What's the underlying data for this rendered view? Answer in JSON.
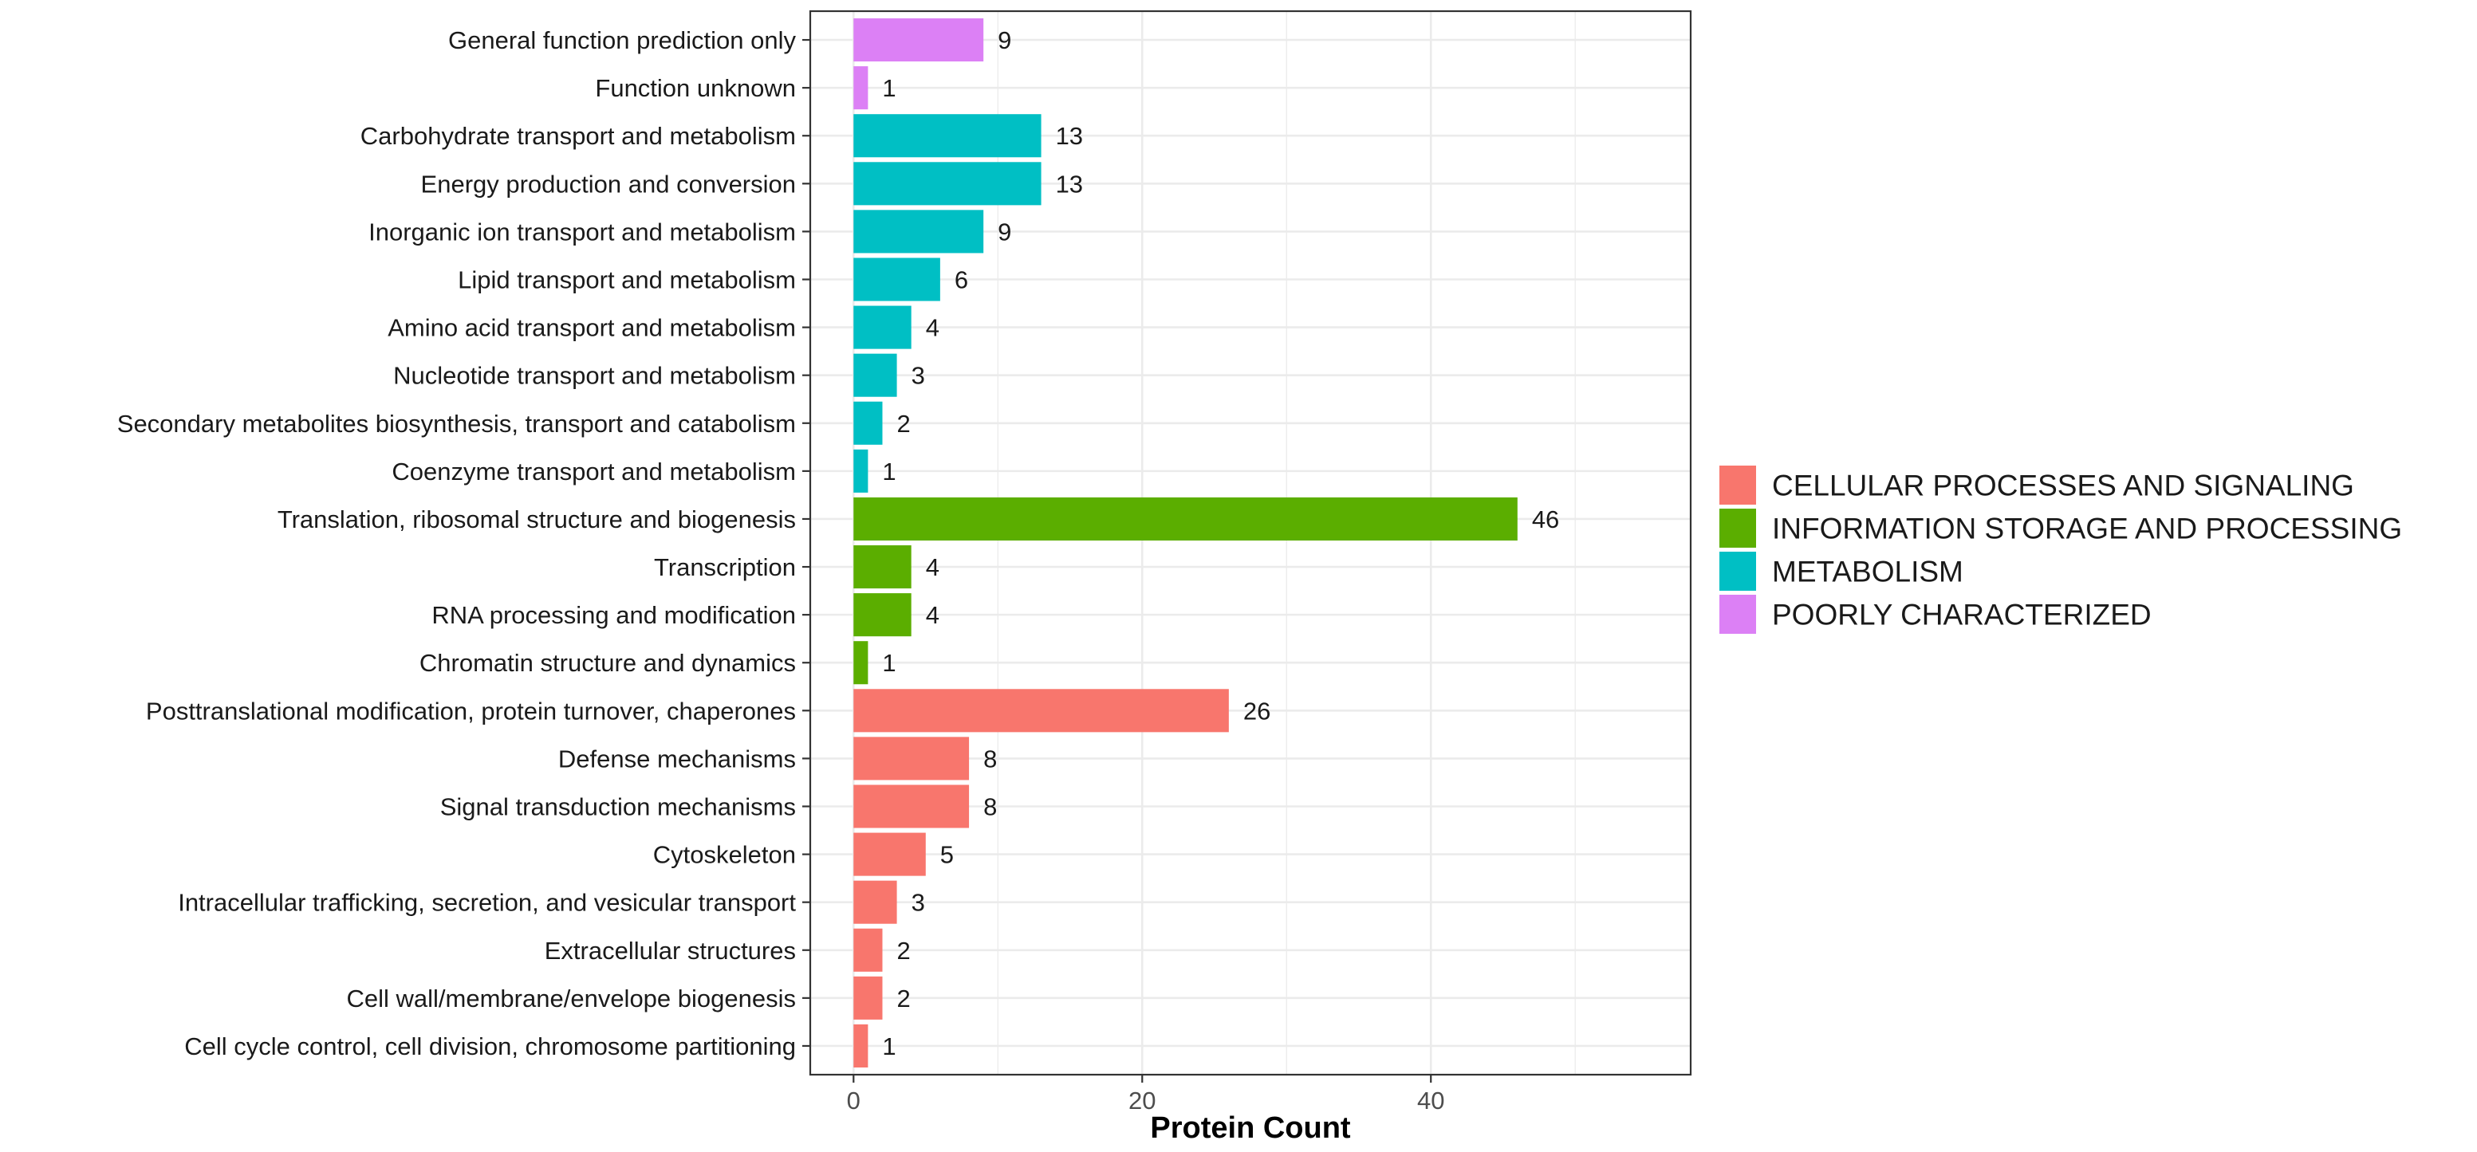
{
  "chart_data": {
    "type": "bar",
    "orientation": "horizontal",
    "title": "",
    "xlabel": "Protein Count",
    "ylabel": "",
    "xlim": [
      -3,
      58
    ],
    "xticks": [
      0,
      20,
      40
    ],
    "grid": true,
    "legend_position": "right",
    "groups": [
      {
        "name": "CELLULAR PROCESSES AND SIGNALING",
        "color": "#F8766D"
      },
      {
        "name": "INFORMATION STORAGE AND PROCESSING",
        "color": "#5BAE00"
      },
      {
        "name": "METABOLISM",
        "color": "#00BFC4"
      },
      {
        "name": "POORLY CHARACTERIZED",
        "color": "#DC80F5"
      }
    ],
    "bars": [
      {
        "category": "General function prediction only",
        "value": 9,
        "group": 3
      },
      {
        "category": "Function unknown",
        "value": 1,
        "group": 3
      },
      {
        "category": "Carbohydrate transport and metabolism",
        "value": 13,
        "group": 2
      },
      {
        "category": "Energy production and conversion",
        "value": 13,
        "group": 2
      },
      {
        "category": "Inorganic ion transport and metabolism",
        "value": 9,
        "group": 2
      },
      {
        "category": "Lipid transport and metabolism",
        "value": 6,
        "group": 2
      },
      {
        "category": "Amino acid transport and metabolism",
        "value": 4,
        "group": 2
      },
      {
        "category": "Nucleotide transport and metabolism",
        "value": 3,
        "group": 2
      },
      {
        "category": "Secondary metabolites biosynthesis, transport and catabolism",
        "value": 2,
        "group": 2
      },
      {
        "category": "Coenzyme transport and metabolism",
        "value": 1,
        "group": 2
      },
      {
        "category": "Translation, ribosomal structure and biogenesis",
        "value": 46,
        "group": 1
      },
      {
        "category": "Transcription",
        "value": 4,
        "group": 1
      },
      {
        "category": "RNA processing and modification",
        "value": 4,
        "group": 1
      },
      {
        "category": "Chromatin structure and dynamics",
        "value": 1,
        "group": 1
      },
      {
        "category": "Posttranslational modification, protein turnover, chaperones",
        "value": 26,
        "group": 0
      },
      {
        "category": "Defense mechanisms",
        "value": 8,
        "group": 0
      },
      {
        "category": "Signal transduction mechanisms",
        "value": 8,
        "group": 0
      },
      {
        "category": "Cytoskeleton",
        "value": 5,
        "group": 0
      },
      {
        "category": "Intracellular trafficking, secretion, and vesicular transport",
        "value": 3,
        "group": 0
      },
      {
        "category": "Extracellular structures",
        "value": 2,
        "group": 0
      },
      {
        "category": "Cell wall/membrane/envelope biogenesis",
        "value": 2,
        "group": 0
      },
      {
        "category": "Cell cycle control, cell division, chromosome partitioning",
        "value": 1,
        "group": 0
      }
    ]
  }
}
